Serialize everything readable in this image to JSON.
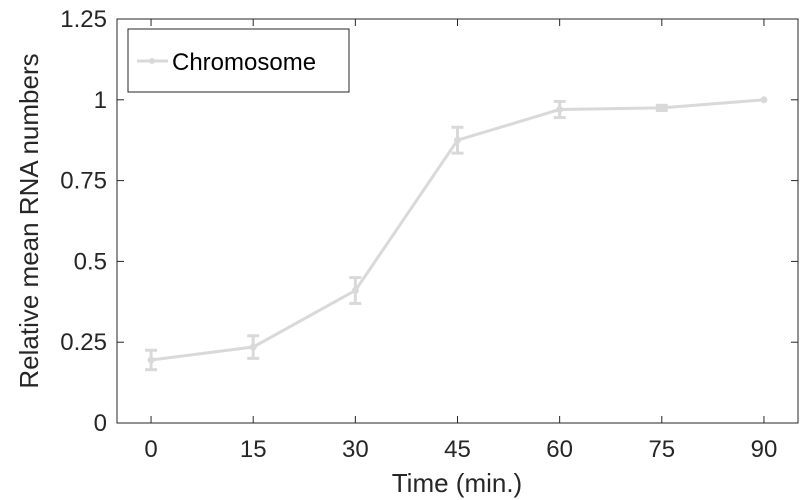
{
  "chart_data": {
    "type": "line",
    "title": "",
    "xlabel": "Time (min.)",
    "ylabel": "Relative mean RNA numbers",
    "x": [
      0,
      15,
      30,
      45,
      60,
      75,
      90
    ],
    "xlim": [
      -5,
      95
    ],
    "ylim": [
      0,
      1.25
    ],
    "xticks": [
      "0",
      "15",
      "30",
      "45",
      "60",
      "75",
      "90"
    ],
    "yticks": [
      "0",
      "0.25",
      "0.5",
      "0.75",
      "1",
      "1.25"
    ],
    "grid": false,
    "legend_position": "top-left",
    "series": [
      {
        "name": "Chromosome",
        "color": "#d9d9d9",
        "values": [
          0.195,
          0.235,
          0.41,
          0.875,
          0.97,
          0.975,
          1.0
        ],
        "errors": [
          0.03,
          0.035,
          0.04,
          0.04,
          0.025,
          0.008,
          0.0
        ]
      }
    ]
  }
}
